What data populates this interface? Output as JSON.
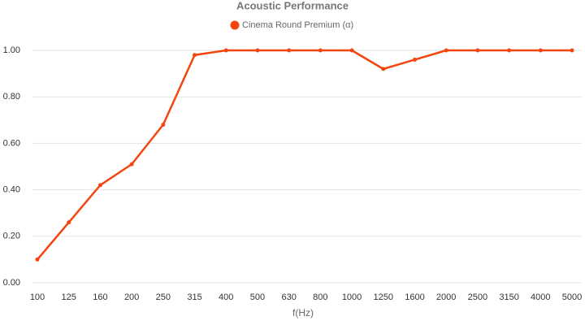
{
  "chart_data": {
    "type": "line",
    "title": "Acoustic Performance",
    "x_label": "f(Hz)",
    "categories": [
      "100",
      "125",
      "160",
      "200",
      "250",
      "315",
      "400",
      "500",
      "630",
      "800",
      "1000",
      "1250",
      "1600",
      "2000",
      "2500",
      "3150",
      "4000",
      "5000"
    ],
    "series": [
      {
        "name": "Cinema Round Premium (α)",
        "color": "#f3450f",
        "values": [
          0.1,
          0.26,
          0.42,
          0.51,
          0.68,
          0.98,
          1.0,
          1.0,
          1.0,
          1.0,
          1.0,
          0.92,
          0.96,
          1.0,
          1.0,
          1.0,
          1.0,
          1.0
        ]
      }
    ],
    "ylim": [
      0,
      1
    ],
    "yticks": [
      {
        "value": 0,
        "label": "0.00"
      },
      {
        "value": 0.2,
        "label": "0.20"
      },
      {
        "value": 0.4,
        "label": "0.40"
      },
      {
        "value": 0.6,
        "label": "0.60"
      },
      {
        "value": 0.8,
        "label": "0.80"
      },
      {
        "value": 1,
        "label": "1.00"
      }
    ],
    "grid": true
  }
}
